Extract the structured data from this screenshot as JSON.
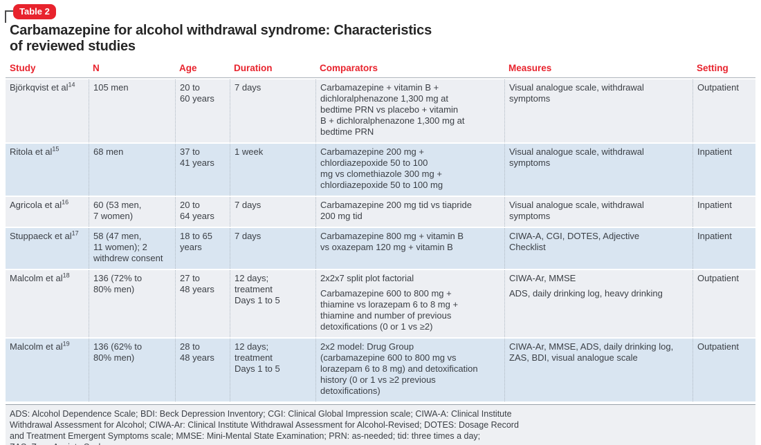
{
  "badge": "Table 2",
  "title": "Carbamazepine for alcohol withdrawal syndrome: Characteristics\nof reviewed studies",
  "colors": {
    "accent_red": "#e8232d",
    "row_light": "#edeff3",
    "row_blue": "#d9e5f1",
    "body_text": "#3b3f45"
  },
  "columns": [
    "Study",
    "N",
    "Age",
    "Duration",
    "Comparators",
    "Measures",
    "Setting"
  ],
  "rows": [
    {
      "study": "Björkqvist et al",
      "ref": "14",
      "n": "105 men",
      "age": "20 to\n60 years",
      "duration": "7 days",
      "comparators": [
        "Carbamazepine + vitamin B +\ndichloralphenazone 1,300 mg at\nbedtime PRN vs placebo + vitamin\nB + dichloralphenazone 1,300 mg at\nbedtime PRN"
      ],
      "measures": [
        "Visual analogue scale, withdrawal\nsymptoms"
      ],
      "setting": "Outpatient"
    },
    {
      "study": "Ritola et al",
      "ref": "15",
      "n": "68 men",
      "age": "37 to\n41 years",
      "duration": "1 week",
      "comparators": [
        "Carbamazepine 200 mg +\nchlordiazepoxide 50 to 100\nmg vs clomethiazole 300 mg +\nchlordiazepoxide 50 to 100 mg"
      ],
      "measures": [
        "Visual analogue scale, withdrawal\nsymptoms"
      ],
      "setting": "Inpatient"
    },
    {
      "study": "Agricola et al",
      "ref": "16",
      "n": "60 (53 men,\n7 women)",
      "age": "20 to\n64 years",
      "duration": "7 days",
      "comparators": [
        "Carbamazepine 200 mg tid vs tiapride\n200 mg tid"
      ],
      "measures": [
        "Visual analogue scale, withdrawal\nsymptoms"
      ],
      "setting": "Inpatient"
    },
    {
      "study": "Stuppaeck et al",
      "ref": "17",
      "n": "58 (47 men,\n11 women); 2\nwithdrew consent",
      "age": "18 to 65\nyears",
      "duration": "7 days",
      "comparators": [
        "Carbamazepine 800 mg + vitamin B\nvs oxazepam 120 mg + vitamin B"
      ],
      "measures": [
        "CIWA-A, CGI, DOTES, Adjective\nChecklist"
      ],
      "setting": "Inpatient"
    },
    {
      "study": "Malcolm et al",
      "ref": "18",
      "n": "136 (72% to\n80% men)",
      "age": "27 to\n48 years",
      "duration": "12 days;\ntreatment\nDays 1 to 5",
      "comparators": [
        "2x2x7 split plot factorial",
        "Carbamazepine 600 to 800 mg +\nthiamine vs lorazepam 6 to 8 mg +\nthiamine and number of previous\ndetoxifications (0 or 1 vs ≥2)"
      ],
      "measures": [
        "CIWA-Ar, MMSE",
        "ADS, daily drinking log, heavy drinking"
      ],
      "setting": "Outpatient"
    },
    {
      "study": "Malcolm et al",
      "ref": "19",
      "n": "136 (62% to\n80% men)",
      "age": "28 to\n48 years",
      "duration": "12 days;\ntreatment\nDays 1 to 5",
      "comparators": [
        "2x2 model: Drug Group\n(carbamazepine 600 to 800 mg vs\nlorazepam 6 to 8 mg) and detoxification\nhistory (0 or 1 vs ≥2 previous\ndetoxifications)"
      ],
      "measures": [
        "CIWA-Ar, MMSE, ADS, daily drinking log,\nZAS, BDI, visual analogue scale"
      ],
      "setting": "Outpatient"
    }
  ],
  "footnote": "ADS: Alcohol Dependence Scale; BDI: Beck Depression Inventory; CGI: Clinical Global Impression scale; CIWA-A: Clinical Institute\nWithdrawal Assessment for Alcohol; CIWA-Ar: Clinical Institute Withdrawal Assessment for Alcohol-Revised; DOTES: Dosage Record\nand Treatment Emergent Symptoms scale; MMSE: Mini-Mental State Examination; PRN: as-needed; tid: three times a day;\nZAS: Zung Anxiety Scale"
}
